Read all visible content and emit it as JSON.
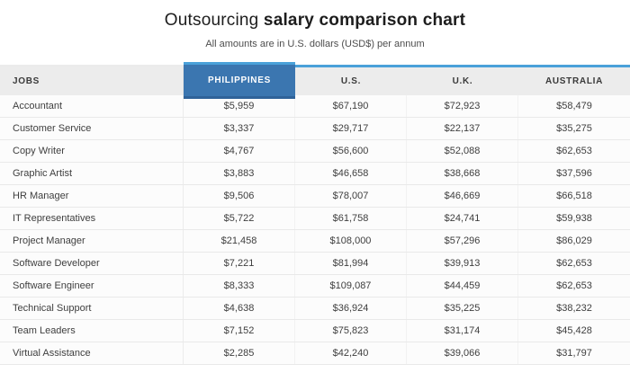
{
  "header": {
    "title_regular": "Outsourcing ",
    "title_bold": "salary comparison chart",
    "subtitle": "All amounts are in U.S. dollars (USD$) per annum"
  },
  "table": {
    "columns": [
      "JOBS",
      "PHILIPPINES",
      "U.S.",
      "U.K.",
      "AUSTRALIA"
    ],
    "highlighted_column": "PHILIPPINES",
    "rows": [
      {
        "job": "Accountant",
        "values": [
          "$5,959",
          "$67,190",
          "$72,923",
          "$58,479"
        ]
      },
      {
        "job": "Customer Service",
        "values": [
          "$3,337",
          "$29,717",
          "$22,137",
          "$35,275"
        ]
      },
      {
        "job": "Copy Writer",
        "values": [
          "$4,767",
          "$56,600",
          "$52,088",
          "$62,653"
        ]
      },
      {
        "job": "Graphic Artist",
        "values": [
          "$3,883",
          "$46,658",
          "$38,668",
          "$37,596"
        ]
      },
      {
        "job": "HR Manager",
        "values": [
          "$9,506",
          "$78,007",
          "$46,669",
          "$66,518"
        ]
      },
      {
        "job": "IT Representatives",
        "values": [
          "$5,722",
          "$61,758",
          "$24,741",
          "$59,938"
        ]
      },
      {
        "job": "Project Manager",
        "values": [
          "$21,458",
          "$108,000",
          "$57,296",
          "$86,029"
        ]
      },
      {
        "job": "Software Developer",
        "values": [
          "$7,221",
          "$81,994",
          "$39,913",
          "$62,653"
        ]
      },
      {
        "job": "Software Engineer",
        "values": [
          "$8,333",
          "$109,087",
          "$44,459",
          "$62,653"
        ]
      },
      {
        "job": "Technical Support",
        "values": [
          "$4,638",
          "$36,924",
          "$35,225",
          "$38,232"
        ]
      },
      {
        "job": "Team Leaders",
        "values": [
          "$7,152",
          "$75,823",
          "$31,174",
          "$45,428"
        ]
      },
      {
        "job": "Virtual Assistance",
        "values": [
          "$2,285",
          "$42,240",
          "$39,066",
          "$31,797"
        ]
      }
    ]
  },
  "colors": {
    "highlight_header_bg": "#3b76b0",
    "highlight_header_border_bottom": "#2f6299",
    "table_top_border": "#4aa1d9",
    "header_bg": "#ececec",
    "row_bg": "#fcfcfc",
    "row_divider": "#e9e9e9",
    "body_text": "#3e3e3e"
  },
  "chart_data": {
    "type": "table",
    "title": "Outsourcing salary comparison chart",
    "subtitle": "All amounts are in U.S. dollars (USD$) per annum",
    "categories": [
      "Accountant",
      "Customer Service",
      "Copy Writer",
      "Graphic Artist",
      "HR Manager",
      "IT Representatives",
      "Project Manager",
      "Software Developer",
      "Software Engineer",
      "Technical Support",
      "Team Leaders",
      "Virtual Assistance"
    ],
    "series": [
      {
        "name": "Philippines",
        "values": [
          5959,
          3337,
          4767,
          3883,
          9506,
          5722,
          21458,
          7221,
          8333,
          4638,
          7152,
          2285
        ]
      },
      {
        "name": "U.S.",
        "values": [
          67190,
          29717,
          56600,
          46658,
          78007,
          61758,
          108000,
          81994,
          109087,
          36924,
          75823,
          42240
        ]
      },
      {
        "name": "U.K.",
        "values": [
          72923,
          22137,
          52088,
          38668,
          46669,
          24741,
          57296,
          39913,
          44459,
          35225,
          31174,
          39066
        ]
      },
      {
        "name": "Australia",
        "values": [
          58479,
          35275,
          62653,
          37596,
          66518,
          59938,
          86029,
          62653,
          62653,
          38232,
          45428,
          31797
        ]
      }
    ],
    "units": "USD per annum"
  }
}
